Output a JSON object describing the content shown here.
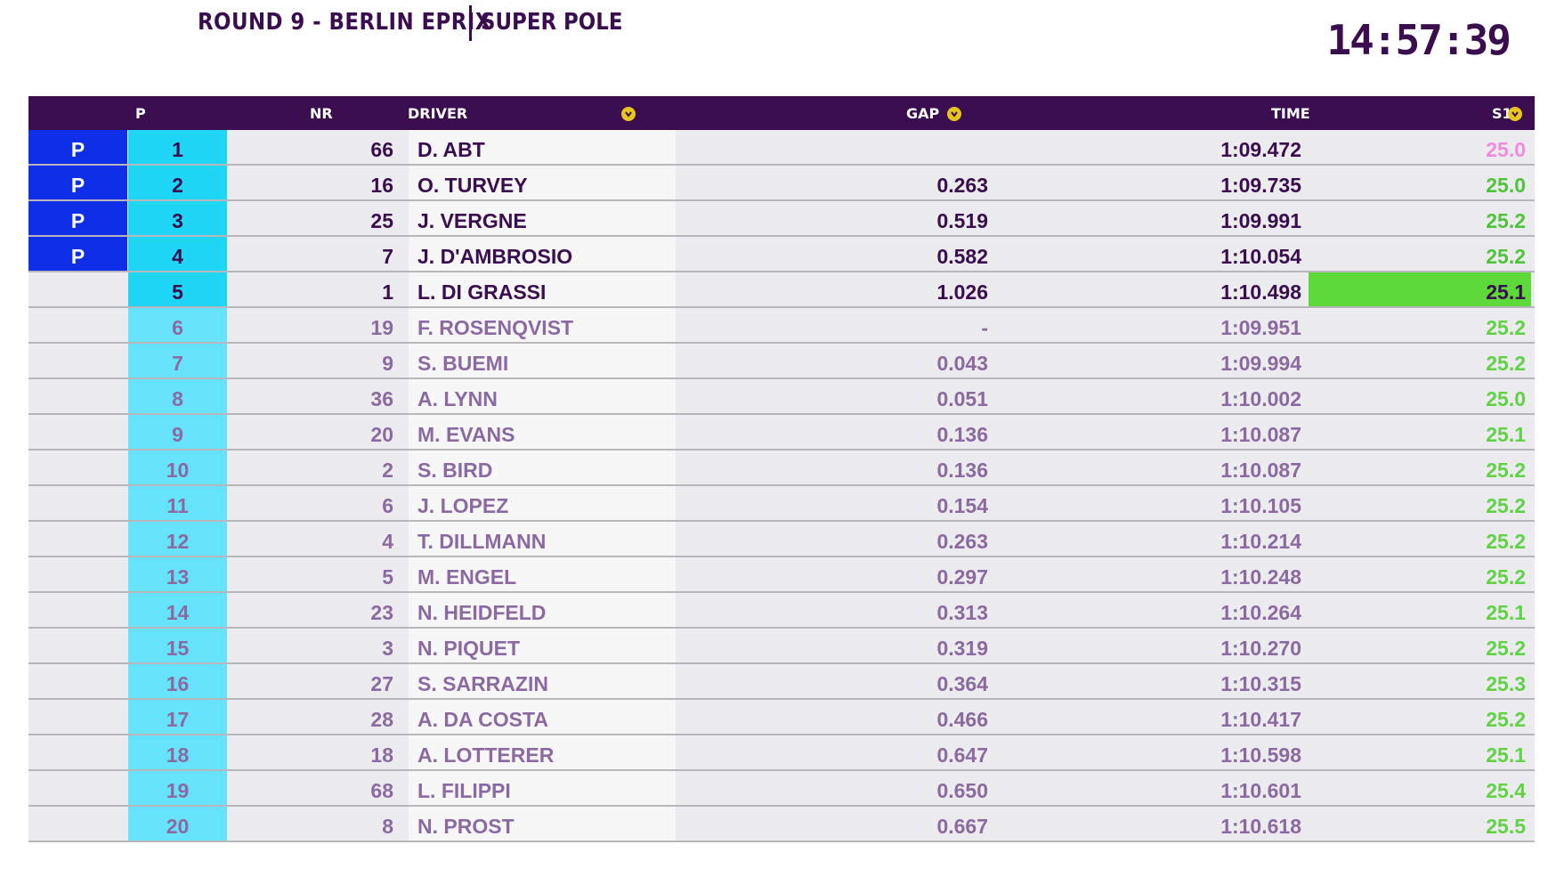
{
  "header": {
    "round": "ROUND 9 - BERLIN EPRIX",
    "session": "SUPER POLE",
    "clock": "14:57:39"
  },
  "columns": {
    "p": "P",
    "nr": "NR",
    "driver": "DRIVER",
    "gap": "GAP",
    "time": "TIME",
    "s1": "S1"
  },
  "colors": {
    "header_bg": "#3a0d4f",
    "pole_blue": "#0e2ee8",
    "pos_cyan": "#20d6f5",
    "sector_green": "#4ec43a",
    "sector_best_bg": "#5ed93a",
    "sector_pink": "#f08ae0",
    "sort_icon": "#e7c51f"
  },
  "rows": [
    {
      "status": "P",
      "pos": "1",
      "nr": "66",
      "driver": "D. ABT",
      "gap": "",
      "time": "1:09.472",
      "s1": "25.0"
    },
    {
      "status": "P",
      "pos": "2",
      "nr": "16",
      "driver": "O. TURVEY",
      "gap": "0.263",
      "time": "1:09.735",
      "s1": "25.0"
    },
    {
      "status": "P",
      "pos": "3",
      "nr": "25",
      "driver": "J. VERGNE",
      "gap": "0.519",
      "time": "1:09.991",
      "s1": "25.2"
    },
    {
      "status": "P",
      "pos": "4",
      "nr": "7",
      "driver": "J. D'AMBROSIO",
      "gap": "0.582",
      "time": "1:10.054",
      "s1": "25.2"
    },
    {
      "status": "",
      "pos": "5",
      "nr": "1",
      "driver": "L. DI GRASSI",
      "gap": "1.026",
      "time": "1:10.498",
      "s1": "25.1"
    },
    {
      "status": "",
      "pos": "6",
      "nr": "19",
      "driver": "F. ROSENQVIST",
      "gap": "-",
      "time": "1:09.951",
      "s1": "25.2"
    },
    {
      "status": "",
      "pos": "7",
      "nr": "9",
      "driver": "S. BUEMI",
      "gap": "0.043",
      "time": "1:09.994",
      "s1": "25.2"
    },
    {
      "status": "",
      "pos": "8",
      "nr": "36",
      "driver": "A. LYNN",
      "gap": "0.051",
      "time": "1:10.002",
      "s1": "25.0"
    },
    {
      "status": "",
      "pos": "9",
      "nr": "20",
      "driver": "M. EVANS",
      "gap": "0.136",
      "time": "1:10.087",
      "s1": "25.1"
    },
    {
      "status": "",
      "pos": "10",
      "nr": "2",
      "driver": "S. BIRD",
      "gap": "0.136",
      "time": "1:10.087",
      "s1": "25.2"
    },
    {
      "status": "",
      "pos": "11",
      "nr": "6",
      "driver": "J. LOPEZ",
      "gap": "0.154",
      "time": "1:10.105",
      "s1": "25.2"
    },
    {
      "status": "",
      "pos": "12",
      "nr": "4",
      "driver": "T. DILLMANN",
      "gap": "0.263",
      "time": "1:10.214",
      "s1": "25.2"
    },
    {
      "status": "",
      "pos": "13",
      "nr": "5",
      "driver": "M. ENGEL",
      "gap": "0.297",
      "time": "1:10.248",
      "s1": "25.2"
    },
    {
      "status": "",
      "pos": "14",
      "nr": "23",
      "driver": "N. HEIDFELD",
      "gap": "0.313",
      "time": "1:10.264",
      "s1": "25.1"
    },
    {
      "status": "",
      "pos": "15",
      "nr": "3",
      "driver": "N. PIQUET",
      "gap": "0.319",
      "time": "1:10.270",
      "s1": "25.2"
    },
    {
      "status": "",
      "pos": "16",
      "nr": "27",
      "driver": "S. SARRAZIN",
      "gap": "0.364",
      "time": "1:10.315",
      "s1": "25.3"
    },
    {
      "status": "",
      "pos": "17",
      "nr": "28",
      "driver": "A. DA COSTA",
      "gap": "0.466",
      "time": "1:10.417",
      "s1": "25.2"
    },
    {
      "status": "",
      "pos": "18",
      "nr": "18",
      "driver": "A. LOTTERER",
      "gap": "0.647",
      "time": "1:10.598",
      "s1": "25.1"
    },
    {
      "status": "",
      "pos": "19",
      "nr": "68",
      "driver": "L. FILIPPI",
      "gap": "0.650",
      "time": "1:10.601",
      "s1": "25.4"
    },
    {
      "status": "",
      "pos": "20",
      "nr": "8",
      "driver": "N. PROST",
      "gap": "0.667",
      "time": "1:10.618",
      "s1": "25.5"
    }
  ]
}
